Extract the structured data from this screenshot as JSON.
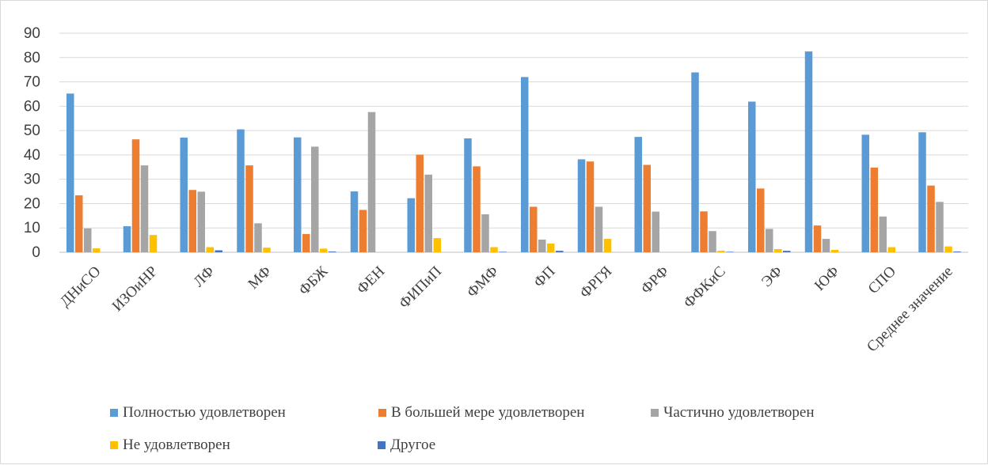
{
  "chart_data": {
    "type": "bar",
    "categories": [
      "ДНиСО",
      "ИЗОиНР",
      "ЛФ",
      "МФ",
      "ФБЖ",
      "ФЕН",
      "ФИПиП",
      "ФМФ",
      "ФП",
      "ФРГЯ",
      "ФРФ",
      "ФФКиС",
      "ЭФ",
      "ЮФ",
      "СПО",
      "Среднее значение"
    ],
    "ylim": [
      0,
      90
    ],
    "yticks": [
      0,
      10,
      20,
      30,
      40,
      50,
      60,
      70,
      80,
      90
    ],
    "grid": true,
    "legend_position": "bottom",
    "series": [
      {
        "name": "Полностью удовлетворен",
        "color": "#5b9bd5",
        "values": [
          65.2,
          10.7,
          47.1,
          50.5,
          47.2,
          25.0,
          22.2,
          46.8,
          72.0,
          38.2,
          47.4,
          73.9,
          61.9,
          82.5,
          48.3,
          49.3
        ]
      },
      {
        "name": "В большей мере удовлетворен",
        "color": "#ed7d31",
        "values": [
          23.4,
          46.4,
          25.6,
          35.7,
          7.5,
          17.4,
          40.1,
          35.3,
          18.7,
          37.3,
          35.9,
          16.8,
          26.2,
          11.0,
          34.8,
          27.4
        ]
      },
      {
        "name": "Частично удовлетворен",
        "color": "#a5a5a5",
        "values": [
          9.8,
          35.7,
          24.9,
          11.9,
          43.4,
          57.6,
          31.9,
          15.6,
          5.2,
          18.7,
          16.7,
          8.7,
          9.6,
          5.5,
          14.7,
          20.7
        ]
      },
      {
        "name": "Не удовлетворен",
        "color": "#ffc000",
        "values": [
          1.6,
          7.1,
          2.1,
          1.9,
          1.5,
          0.0,
          5.8,
          2.1,
          3.6,
          5.5,
          0.0,
          0.6,
          1.3,
          1.0,
          2.1,
          2.4
        ]
      },
      {
        "name": "Другое",
        "color": "#4472c4",
        "values": [
          0.0,
          0.0,
          0.8,
          0.0,
          0.3,
          0.0,
          0.0,
          0.2,
          0.6,
          0.0,
          0.0,
          0.2,
          0.6,
          0.0,
          0.0,
          0.3
        ]
      }
    ]
  }
}
